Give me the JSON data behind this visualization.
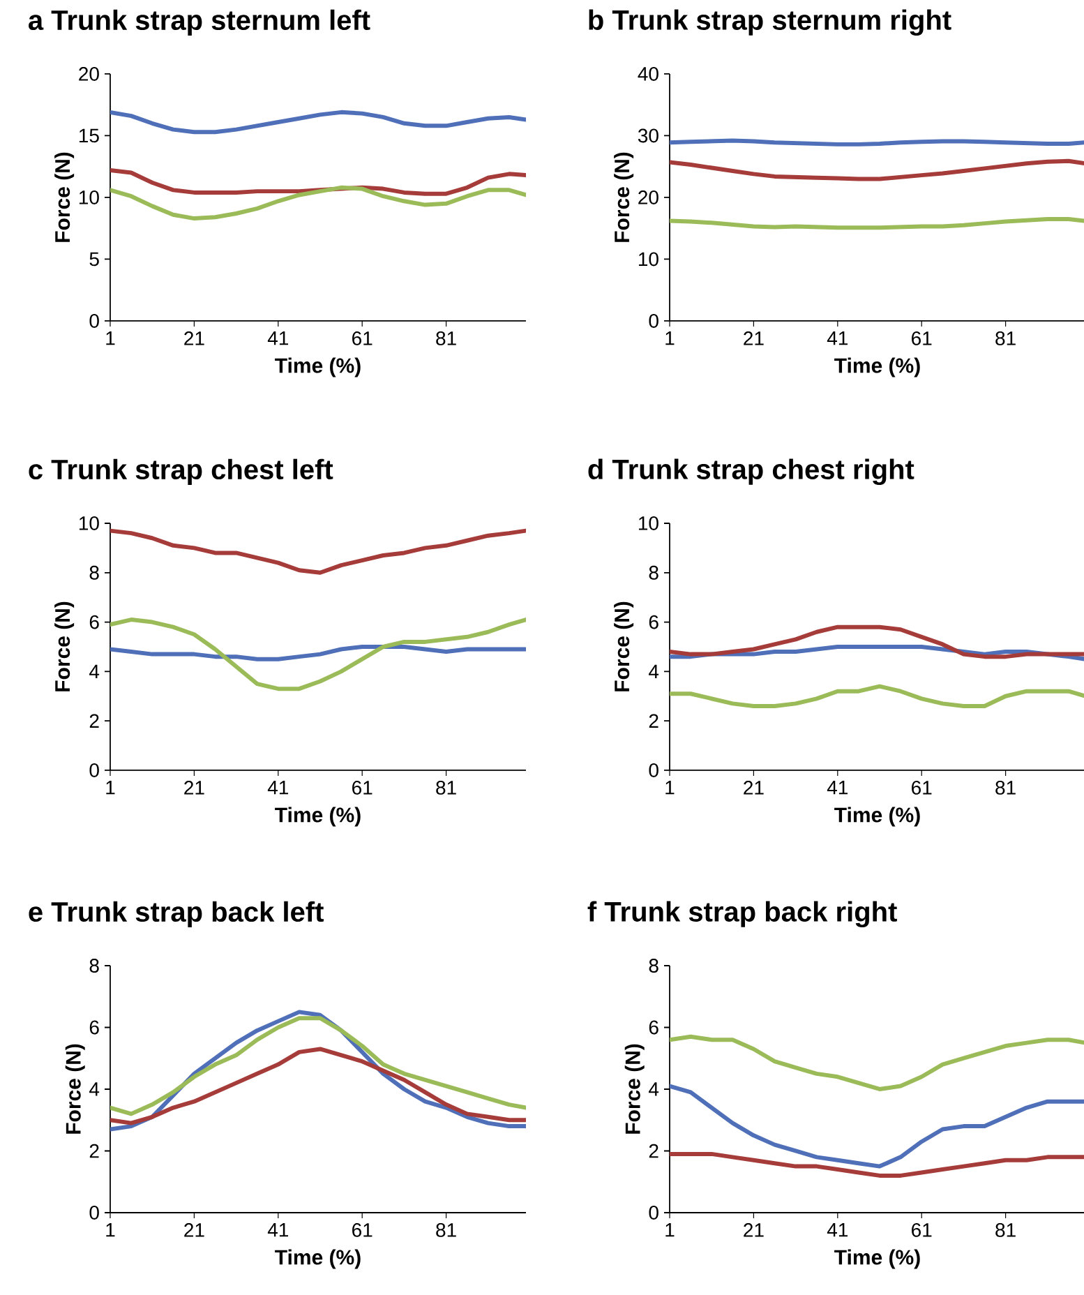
{
  "chart_data": [
    {
      "type": "line",
      "title": "a  Trunk strap sternum left",
      "xlabel": "Time (%)",
      "ylabel": "Force (N)",
      "x": [
        1,
        6,
        11,
        16,
        21,
        26,
        31,
        36,
        41,
        46,
        51,
        56,
        61,
        66,
        71,
        76,
        81,
        86,
        91,
        96,
        100
      ],
      "xlim": [
        1,
        100
      ],
      "xticks": [
        1,
        21,
        41,
        61,
        81
      ],
      "ylim": [
        0,
        20
      ],
      "yticks": [
        0,
        5,
        10,
        15,
        20
      ],
      "series": [
        {
          "color": "#4f6fb8",
          "values": [
            16.9,
            16.6,
            16.0,
            15.5,
            15.3,
            15.3,
            15.5,
            15.8,
            16.1,
            16.4,
            16.7,
            16.9,
            16.8,
            16.5,
            16.0,
            15.8,
            15.8,
            16.1,
            16.4,
            16.5,
            16.3
          ]
        },
        {
          "color": "#a63c3a",
          "values": [
            12.2,
            12.0,
            11.2,
            10.6,
            10.4,
            10.4,
            10.4,
            10.5,
            10.5,
            10.5,
            10.6,
            10.7,
            10.8,
            10.7,
            10.4,
            10.3,
            10.3,
            10.8,
            11.6,
            11.9,
            11.8
          ]
        },
        {
          "color": "#9bbb59",
          "values": [
            10.6,
            10.1,
            9.3,
            8.6,
            8.3,
            8.4,
            8.7,
            9.1,
            9.7,
            10.2,
            10.5,
            10.8,
            10.7,
            10.1,
            9.7,
            9.4,
            9.5,
            10.1,
            10.6,
            10.6,
            10.2
          ]
        }
      ]
    },
    {
      "type": "line",
      "title": "b  Trunk strap sternum right",
      "xlabel": "Time (%)",
      "ylabel": "Force (N)",
      "x": [
        1,
        6,
        11,
        16,
        21,
        26,
        31,
        36,
        41,
        46,
        51,
        56,
        61,
        66,
        71,
        76,
        81,
        86,
        91,
        96,
        100
      ],
      "xlim": [
        1,
        100
      ],
      "xticks": [
        1,
        21,
        41,
        61,
        81
      ],
      "ylim": [
        0,
        40
      ],
      "yticks": [
        0,
        10,
        20,
        30,
        40
      ],
      "series": [
        {
          "color": "#4f6fb8",
          "values": [
            28.9,
            29.0,
            29.1,
            29.2,
            29.1,
            28.9,
            28.8,
            28.7,
            28.6,
            28.6,
            28.7,
            28.9,
            29.0,
            29.1,
            29.1,
            29.0,
            28.9,
            28.8,
            28.7,
            28.7,
            28.9
          ]
        },
        {
          "color": "#a63c3a",
          "values": [
            25.7,
            25.3,
            24.8,
            24.3,
            23.8,
            23.4,
            23.3,
            23.2,
            23.1,
            23.0,
            23.0,
            23.3,
            23.6,
            23.9,
            24.3,
            24.7,
            25.1,
            25.5,
            25.8,
            25.9,
            25.5
          ]
        },
        {
          "color": "#9bbb59",
          "values": [
            16.2,
            16.1,
            15.9,
            15.6,
            15.3,
            15.2,
            15.3,
            15.2,
            15.1,
            15.1,
            15.1,
            15.2,
            15.3,
            15.3,
            15.5,
            15.8,
            16.1,
            16.3,
            16.5,
            16.5,
            16.2
          ]
        }
      ]
    },
    {
      "type": "line",
      "title": "c  Trunk strap chest left",
      "xlabel": "Time (%)",
      "ylabel": "Force (N)",
      "x": [
        1,
        6,
        11,
        16,
        21,
        26,
        31,
        36,
        41,
        46,
        51,
        56,
        61,
        66,
        71,
        76,
        81,
        86,
        91,
        96,
        100
      ],
      "xlim": [
        1,
        100
      ],
      "xticks": [
        1,
        21,
        41,
        61,
        81
      ],
      "ylim": [
        0,
        10
      ],
      "yticks": [
        0,
        2,
        4,
        6,
        8,
        10
      ],
      "series": [
        {
          "color": "#4f6fb8",
          "values": [
            4.9,
            4.8,
            4.7,
            4.7,
            4.7,
            4.6,
            4.6,
            4.5,
            4.5,
            4.6,
            4.7,
            4.9,
            5.0,
            5.0,
            5.0,
            4.9,
            4.8,
            4.9,
            4.9,
            4.9,
            4.9
          ]
        },
        {
          "color": "#a63c3a",
          "values": [
            9.7,
            9.6,
            9.4,
            9.1,
            9.0,
            8.8,
            8.8,
            8.6,
            8.4,
            8.1,
            8.0,
            8.3,
            8.5,
            8.7,
            8.8,
            9.0,
            9.1,
            9.3,
            9.5,
            9.6,
            9.7
          ]
        },
        {
          "color": "#9bbb59",
          "values": [
            5.9,
            6.1,
            6.0,
            5.8,
            5.5,
            4.9,
            4.2,
            3.5,
            3.3,
            3.3,
            3.6,
            4.0,
            4.5,
            5.0,
            5.2,
            5.2,
            5.3,
            5.4,
            5.6,
            5.9,
            6.1
          ]
        }
      ]
    },
    {
      "type": "line",
      "title": "d  Trunk strap chest right",
      "xlabel": "Time (%)",
      "ylabel": "Force (N)",
      "x": [
        1,
        6,
        11,
        16,
        21,
        26,
        31,
        36,
        41,
        46,
        51,
        56,
        61,
        66,
        71,
        76,
        81,
        86,
        91,
        96,
        100
      ],
      "xlim": [
        1,
        100
      ],
      "xticks": [
        1,
        21,
        41,
        61,
        81
      ],
      "ylim": [
        0,
        10
      ],
      "yticks": [
        0,
        2,
        4,
        6,
        8,
        10
      ],
      "series": [
        {
          "color": "#4f6fb8",
          "values": [
            4.6,
            4.6,
            4.7,
            4.7,
            4.7,
            4.8,
            4.8,
            4.9,
            5.0,
            5.0,
            5.0,
            5.0,
            5.0,
            4.9,
            4.8,
            4.7,
            4.8,
            4.8,
            4.7,
            4.6,
            4.5
          ]
        },
        {
          "color": "#a63c3a",
          "values": [
            4.8,
            4.7,
            4.7,
            4.8,
            4.9,
            5.1,
            5.3,
            5.6,
            5.8,
            5.8,
            5.8,
            5.7,
            5.4,
            5.1,
            4.7,
            4.6,
            4.6,
            4.7,
            4.7,
            4.7,
            4.7
          ]
        },
        {
          "color": "#9bbb59",
          "values": [
            3.1,
            3.1,
            2.9,
            2.7,
            2.6,
            2.6,
            2.7,
            2.9,
            3.2,
            3.2,
            3.4,
            3.2,
            2.9,
            2.7,
            2.6,
            2.6,
            3.0,
            3.2,
            3.2,
            3.2,
            3.0
          ]
        }
      ]
    },
    {
      "type": "line",
      "title": "e  Trunk strap back left",
      "xlabel": "Time (%)",
      "ylabel": "Force (N)",
      "x": [
        1,
        6,
        11,
        16,
        21,
        26,
        31,
        36,
        41,
        46,
        51,
        56,
        61,
        66,
        71,
        76,
        81,
        86,
        91,
        96,
        100
      ],
      "xlim": [
        1,
        100
      ],
      "xticks": [
        1,
        21,
        41,
        61,
        81
      ],
      "ylim": [
        0,
        8
      ],
      "yticks": [
        0,
        2,
        4,
        6,
        8
      ],
      "series": [
        {
          "color": "#4f6fb8",
          "values": [
            2.7,
            2.8,
            3.1,
            3.8,
            4.5,
            5.0,
            5.5,
            5.9,
            6.2,
            6.5,
            6.4,
            5.9,
            5.2,
            4.5,
            4.0,
            3.6,
            3.4,
            3.1,
            2.9,
            2.8,
            2.8
          ]
        },
        {
          "color": "#a63c3a",
          "values": [
            3.0,
            2.9,
            3.1,
            3.4,
            3.6,
            3.9,
            4.2,
            4.5,
            4.8,
            5.2,
            5.3,
            5.1,
            4.9,
            4.6,
            4.3,
            3.9,
            3.5,
            3.2,
            3.1,
            3.0,
            3.0
          ]
        },
        {
          "color": "#9bbb59",
          "values": [
            3.4,
            3.2,
            3.5,
            3.9,
            4.4,
            4.8,
            5.1,
            5.6,
            6.0,
            6.3,
            6.3,
            5.9,
            5.4,
            4.8,
            4.5,
            4.3,
            4.1,
            3.9,
            3.7,
            3.5,
            3.4
          ]
        }
      ]
    },
    {
      "type": "line",
      "title": "f  Trunk strap back right",
      "xlabel": "Time (%)",
      "ylabel": "Force (N)",
      "x": [
        1,
        6,
        11,
        16,
        21,
        26,
        31,
        36,
        41,
        46,
        51,
        56,
        61,
        66,
        71,
        76,
        81,
        86,
        91,
        96,
        100
      ],
      "xlim": [
        1,
        100
      ],
      "xticks": [
        1,
        21,
        41,
        61,
        81
      ],
      "ylim": [
        0,
        8
      ],
      "yticks": [
        0,
        2,
        4,
        6,
        8
      ],
      "series": [
        {
          "color": "#4f6fb8",
          "values": [
            4.1,
            3.9,
            3.4,
            2.9,
            2.5,
            2.2,
            2.0,
            1.8,
            1.7,
            1.6,
            1.5,
            1.8,
            2.3,
            2.7,
            2.8,
            2.8,
            3.1,
            3.4,
            3.6,
            3.6,
            3.6
          ]
        },
        {
          "color": "#a63c3a",
          "values": [
            1.9,
            1.9,
            1.9,
            1.8,
            1.7,
            1.6,
            1.5,
            1.5,
            1.4,
            1.3,
            1.2,
            1.2,
            1.3,
            1.4,
            1.5,
            1.6,
            1.7,
            1.7,
            1.8,
            1.8,
            1.8
          ]
        },
        {
          "color": "#9bbb59",
          "values": [
            5.6,
            5.7,
            5.6,
            5.6,
            5.3,
            4.9,
            4.7,
            4.5,
            4.4,
            4.2,
            4.0,
            4.1,
            4.4,
            4.8,
            5.0,
            5.2,
            5.4,
            5.5,
            5.6,
            5.6,
            5.5
          ]
        }
      ]
    }
  ]
}
